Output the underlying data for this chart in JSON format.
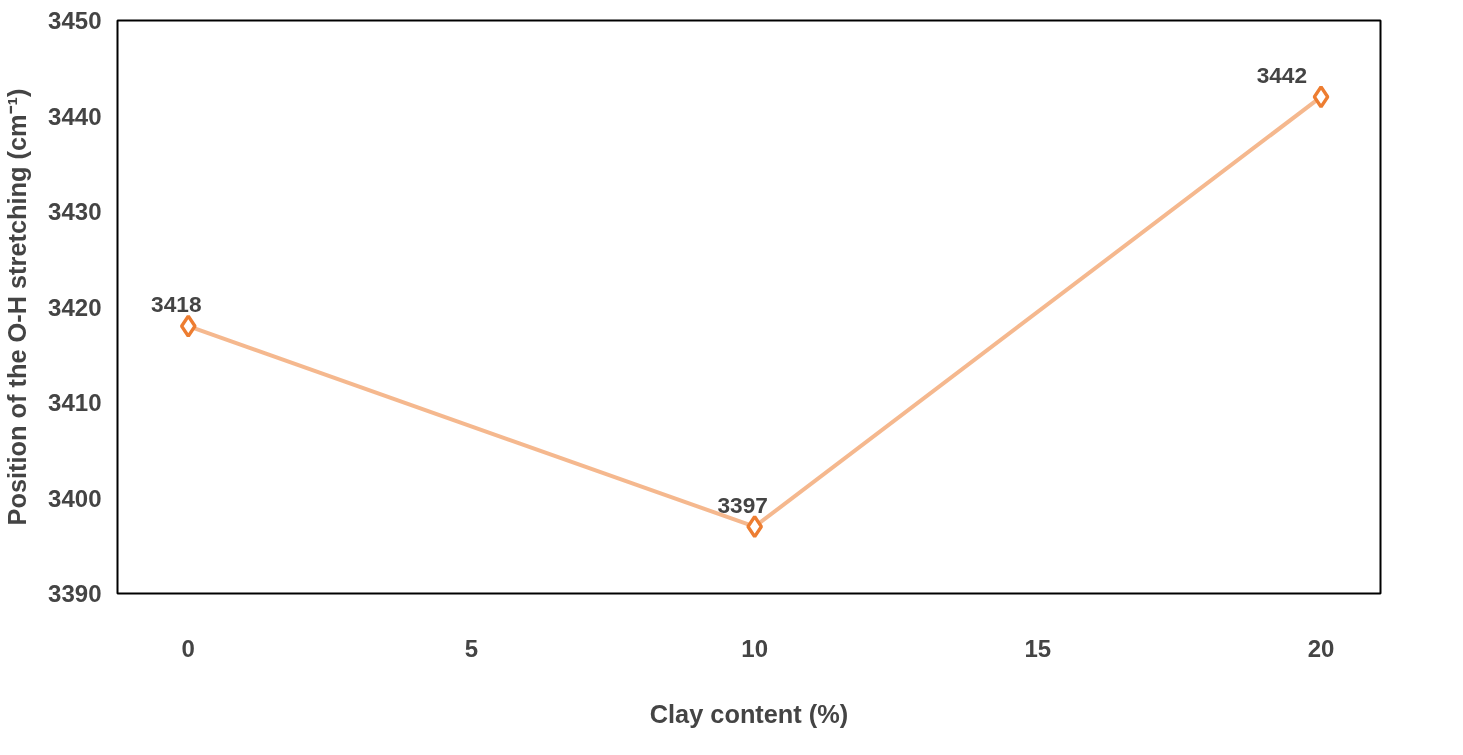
{
  "chart_data": {
    "type": "line",
    "xlabel": "Clay content (%)",
    "ylabel": "Position of the O-H stretching (cm⁻¹)",
    "x": [
      0,
      10,
      20
    ],
    "series": [
      {
        "color": "#ed7d31",
        "values": [
          3418,
          3397,
          3442
        ]
      }
    ],
    "xlim": [
      -1.25,
      21.05
    ],
    "ylim": [
      3390,
      3450
    ],
    "xticks": [
      0,
      5,
      10,
      15,
      20
    ],
    "yticks": [
      3390,
      3400,
      3410,
      3420,
      3430,
      3440,
      3450
    ],
    "grid": false,
    "marker": "diamond",
    "line_style": "solid",
    "data_labels": true
  }
}
